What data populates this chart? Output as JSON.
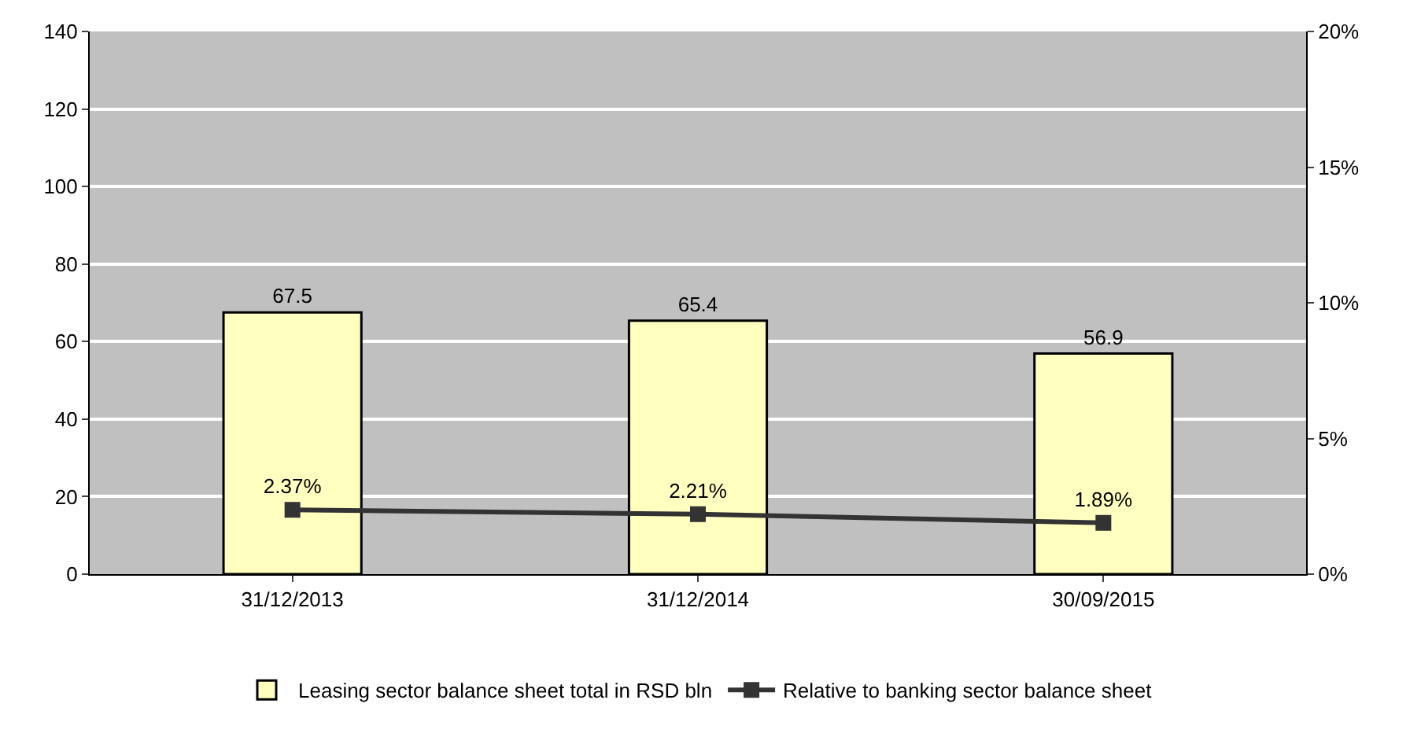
{
  "chart_data": {
    "type": "bar",
    "categories": [
      "31/12/2013",
      "31/12/2014",
      "30/09/2015"
    ],
    "series": [
      {
        "name": "Leasing sector balance sheet total in RSD bln",
        "color": "#ffffc0",
        "values": [
          67.5,
          65.4,
          56.9
        ],
        "value_labels": [
          "67.5",
          "65.4",
          "56.9"
        ]
      },
      {
        "name": "Relative to banking sector balance sheet",
        "type": "line",
        "axis": "y2",
        "color": "#333333",
        "values": [
          2.37,
          2.21,
          1.89
        ],
        "value_labels": [
          "2.37%",
          "2.21%",
          "1.89%"
        ]
      }
    ],
    "ylim": [
      0,
      140
    ],
    "yticks": [
      0,
      20,
      40,
      60,
      80,
      100,
      120,
      140
    ],
    "y2lim": [
      0,
      20
    ],
    "y2ticks": [
      {
        "value": 0,
        "label": "0%"
      },
      {
        "value": 5,
        "label": "5%"
      },
      {
        "value": 10,
        "label": "10%"
      },
      {
        "value": 15,
        "label": "15%"
      },
      {
        "value": 20,
        "label": "20%"
      }
    ],
    "grid": "y",
    "legend": "bottom",
    "marker": "square",
    "line_style": "solid"
  }
}
